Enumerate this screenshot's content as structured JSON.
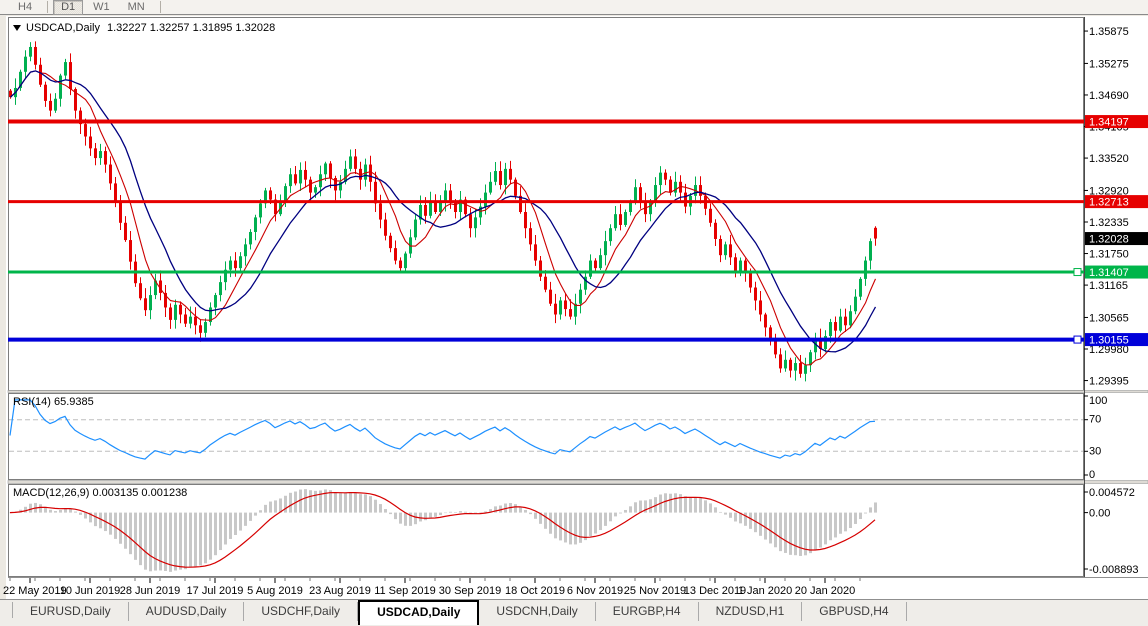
{
  "toolbar": {
    "timeframes": [
      {
        "label": "H4",
        "active": false
      },
      {
        "label": "D1",
        "active": true
      },
      {
        "label": "W1",
        "active": false
      },
      {
        "label": "MN",
        "active": false
      }
    ]
  },
  "chart": {
    "title": {
      "symbol": "USDCAD,Daily",
      "ohlc": "1.32227 1.32257 1.31895 1.32028"
    }
  },
  "chart_data": {
    "type": "candlestick",
    "symbol": "USDCAD",
    "timeframe": "Daily",
    "current": {
      "open": 1.32227,
      "high": 1.32257,
      "low": 1.31895,
      "close": 1.32028
    },
    "price_range": {
      "top": 1.3608,
      "bottom": 1.2922
    },
    "price_axis_ticks": [
      1.35875,
      1.35275,
      1.3469,
      1.34105,
      1.3352,
      1.3292,
      1.32335,
      1.3175,
      1.31165,
      1.30565,
      1.2998,
      1.29395
    ],
    "closes": [
      1.3465,
      1.3482,
      1.3512,
      1.354,
      1.3558,
      1.3525,
      1.3488,
      1.3458,
      1.344,
      1.3462,
      1.3505,
      1.353,
      1.348,
      1.344,
      1.3415,
      1.3392,
      1.337,
      1.3352,
      1.3365,
      1.334,
      1.3305,
      1.327,
      1.3232,
      1.32,
      1.316,
      1.312,
      1.3092,
      1.307,
      1.3098,
      1.3125,
      1.3102,
      1.3075,
      1.3052,
      1.308,
      1.3062,
      1.3045,
      1.3058,
      1.3042,
      1.3028,
      1.3048,
      1.3075,
      1.3098,
      1.3122,
      1.3145,
      1.3162,
      1.3148,
      1.317,
      1.3192,
      1.3215,
      1.3242,
      1.3268,
      1.3292,
      1.3275,
      1.3248,
      1.3272,
      1.33,
      1.3322,
      1.3305,
      1.333,
      1.3312,
      1.3288,
      1.3298,
      1.3322,
      1.3342,
      1.3315,
      1.3292,
      1.3308,
      1.3332,
      1.3355,
      1.3332,
      1.3312,
      1.334,
      1.3308,
      1.3268,
      1.3238,
      1.3208,
      1.3185,
      1.3162,
      1.3148,
      1.3175,
      1.3205,
      1.3238,
      1.3265,
      1.3245,
      1.3272,
      1.3252,
      1.3272,
      1.3292,
      1.3272,
      1.3252,
      1.3275,
      1.3248,
      1.3222,
      1.3242,
      1.3262,
      1.3288,
      1.3308,
      1.3328,
      1.3302,
      1.3332,
      1.3312,
      1.3282,
      1.3252,
      1.3222,
      1.3192,
      1.3162,
      1.3132,
      1.3108,
      1.3082,
      1.3062,
      1.3088,
      1.3072,
      1.3058,
      1.3082,
      1.3108,
      1.3132,
      1.3162,
      1.3148,
      1.3172,
      1.3198,
      1.3222,
      1.3248,
      1.3228,
      1.3252,
      1.3272,
      1.3298,
      1.3272,
      1.3248,
      1.3272,
      1.3302,
      1.3325,
      1.3312,
      1.3288,
      1.3308,
      1.3288,
      1.3262,
      1.3282,
      1.3302,
      1.3282,
      1.3258,
      1.3232,
      1.3202,
      1.3172,
      1.3192,
      1.3168,
      1.3142,
      1.3162,
      1.3138,
      1.3112,
      1.3088,
      1.3062,
      1.3038,
      1.3012,
      1.2988,
      1.2962,
      1.2978,
      1.2958,
      1.2972,
      1.2952,
      1.2968,
      1.2992,
      1.3018,
      1.2998,
      1.3022,
      1.3048,
      1.3032,
      1.3058,
      1.3042,
      1.3068,
      1.3095,
      1.3128,
      1.3162,
      1.3198,
      1.32028
    ],
    "moving_averages": [
      {
        "name": "fast",
        "period": 7,
        "color": "#cc0000"
      },
      {
        "name": "slow",
        "period": 14,
        "color": "#000080"
      }
    ],
    "hlines": [
      {
        "price": 1.34197,
        "label": "1.34197",
        "color": "#e60000",
        "thickness": 4,
        "handle": false
      },
      {
        "price": 1.32713,
        "label": "1.32713",
        "color": "#e60000",
        "thickness": 3,
        "handle": false
      },
      {
        "price": 1.31407,
        "label": "1.31407",
        "color": "#00b54a",
        "thickness": 3,
        "handle": true
      },
      {
        "price": 1.30155,
        "label": "1.30155",
        "color": "#0000d9",
        "thickness": 4,
        "handle": true
      }
    ],
    "current_price_badge": {
      "price": 1.32028,
      "label": "1.32028",
      "bg": "#000000"
    },
    "x_axis": {
      "labels": [
        {
          "text": "22 May 2019",
          "index": 4
        },
        {
          "text": "10 Jun 2019",
          "index": 16
        },
        {
          "text": "28 Jun 2019",
          "index": 28
        },
        {
          "text": "17 Jul 2019",
          "index": 41
        },
        {
          "text": "5 Aug 2019",
          "index": 53
        },
        {
          "text": "23 Aug 2019",
          "index": 66
        },
        {
          "text": "11 Sep 2019",
          "index": 79
        },
        {
          "text": "30 Sep 2019",
          "index": 92
        },
        {
          "text": "18 Oct 2019",
          "index": 105
        },
        {
          "text": "6 Nov 2019",
          "index": 117
        },
        {
          "text": "25 Nov 2019",
          "index": 129
        },
        {
          "text": "13 Dec 2019",
          "index": 141
        },
        {
          "text": "1 Jan 2020",
          "index": 151
        },
        {
          "text": "20 Jan 2020",
          "index": 163
        }
      ]
    },
    "rsi": {
      "label": "RSI(14)",
      "value_text": "65.9385",
      "period": 14,
      "levels": [
        100,
        70,
        30,
        0
      ],
      "overbought": 70,
      "oversold": 30,
      "color": "#1e90ff"
    },
    "macd": {
      "label": "MACD(12,26,9)",
      "values_text": "0.003135 0.001238",
      "fast": 12,
      "slow": 26,
      "signal_period": 9,
      "value": 0.003135,
      "signal_value": 0.001238,
      "axis_labels": {
        "top": "0.004572",
        "zero": "0.00",
        "bottom": "-0.008893"
      },
      "hist_color": "#c8c8c8",
      "signal_color": "#d60000"
    },
    "colors": {
      "bull": "#00b050",
      "bear": "#e60000",
      "panel_bg": "#ffffff",
      "panel_border": "#7d7d7d",
      "axis_line": "#4a4a4a",
      "rsi_level_dash": "#bdbdbd"
    }
  },
  "tabs": {
    "items": [
      {
        "label": "EURUSD,Daily",
        "active": false
      },
      {
        "label": "AUDUSD,Daily",
        "active": false
      },
      {
        "label": "USDCHF,Daily",
        "active": false
      },
      {
        "label": "USDCAD,Daily",
        "active": true
      },
      {
        "label": "USDCNH,Daily",
        "active": false
      },
      {
        "label": "EURGBP,H4",
        "active": false
      },
      {
        "label": "NZDUSD,H1",
        "active": false
      },
      {
        "label": "GBPUSD,H4",
        "active": false
      }
    ]
  }
}
